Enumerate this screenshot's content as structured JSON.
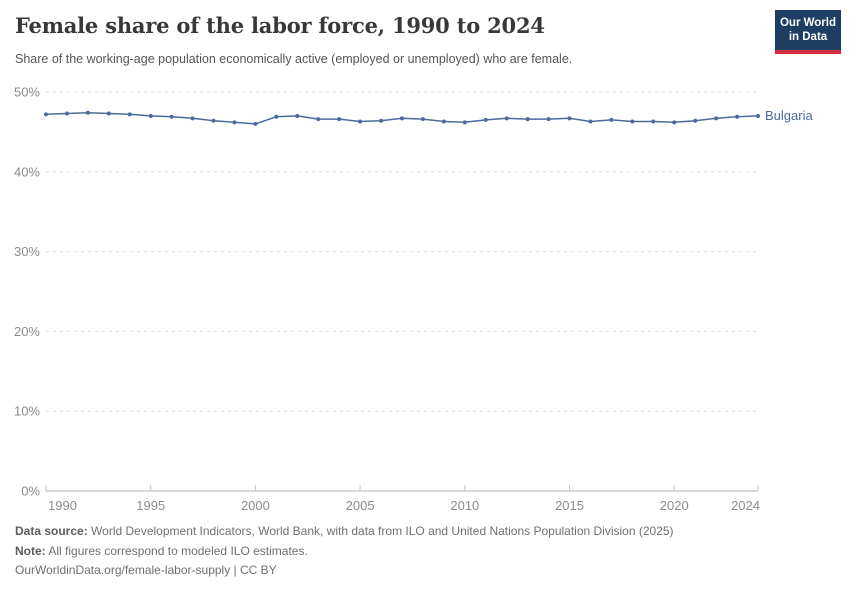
{
  "logo": {
    "line1": "Our World",
    "line2": "in Data",
    "bg_color": "#1d3d63",
    "accent_color": "#d12d3e"
  },
  "chart_data": {
    "type": "line",
    "title": "Female share of the labor force, 1990 to 2024",
    "subtitle": "Share of the working-age population economically active (employed or unemployed) who are female.",
    "series": [
      {
        "name": "Bulgaria",
        "color": "#4C6A9C",
        "x": [
          1990,
          1991,
          1992,
          1993,
          1994,
          1995,
          1996,
          1997,
          1998,
          1999,
          2000,
          2001,
          2002,
          2003,
          2004,
          2005,
          2006,
          2007,
          2008,
          2009,
          2010,
          2011,
          2012,
          2013,
          2014,
          2015,
          2016,
          2017,
          2018,
          2019,
          2020,
          2021,
          2022,
          2023,
          2024
        ],
        "values": [
          47.2,
          47.3,
          47.4,
          47.3,
          47.2,
          47.0,
          46.9,
          46.7,
          46.4,
          46.2,
          46.0,
          46.9,
          47.0,
          46.6,
          46.6,
          46.3,
          46.4,
          46.7,
          46.6,
          46.3,
          46.2,
          46.5,
          46.7,
          46.6,
          46.6,
          46.7,
          46.3,
          46.5,
          46.3,
          46.3,
          46.2,
          46.4,
          46.7,
          46.9,
          47.0
        ]
      }
    ],
    "xlabel": "",
    "ylabel": "",
    "xlim": [
      1990,
      2024
    ],
    "ylim": [
      0,
      50
    ],
    "xticks": [
      1990,
      1995,
      2000,
      2005,
      2010,
      2015,
      2020,
      2024
    ],
    "yticks": [
      0,
      10,
      20,
      30,
      40,
      50
    ],
    "ytick_suffix": "%",
    "grid": "horizontal-dashed",
    "legend_position": "right-of-line-end-label",
    "colors": {
      "grid": "#dcdcdc",
      "axis": "#b3b3b3",
      "tick": "#c6c6c6",
      "tick_text": "#8b8b8b"
    }
  },
  "footer": {
    "source_label": "Data source:",
    "source_text": " World Development Indicators, World Bank, with data from ILO and United Nations Population Division (2025)",
    "note_label": "Note:",
    "note_text": " All figures correspond to modeled ILO estimates.",
    "url": "OurWorldinData.org/female-labor-supply",
    "license": " | CC BY"
  }
}
